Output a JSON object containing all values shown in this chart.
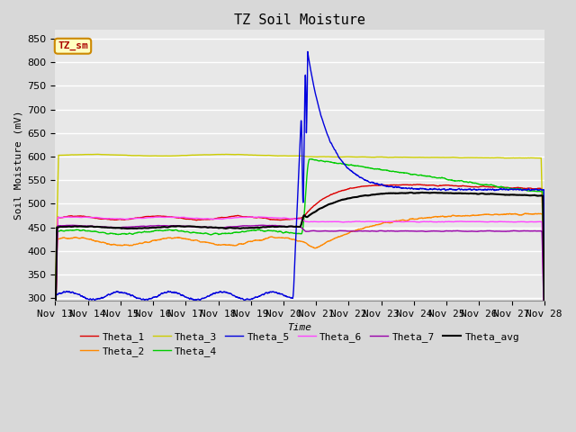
{
  "title": "TZ Soil Moisture",
  "ylabel": "Soil Moisture (mV)",
  "xlabel": "Time",
  "legend_label": "TZ_sm",
  "ylim": [
    295,
    870
  ],
  "yticks": [
    300,
    350,
    400,
    450,
    500,
    550,
    600,
    650,
    700,
    750,
    800,
    850
  ],
  "x_tick_labels": [
    "Nov 13",
    "Nov 14",
    "Nov 15",
    "Nov 16",
    "Nov 17",
    "Nov 18",
    "Nov 19",
    "Nov 20",
    "Nov 21",
    "Nov 22",
    "Nov 23",
    "Nov 24",
    "Nov 25",
    "Nov 26",
    "Nov 27",
    "Nov 28"
  ],
  "series_colors": {
    "Theta_1": "#dd0000",
    "Theta_2": "#ff8800",
    "Theta_3": "#cccc00",
    "Theta_4": "#00cc00",
    "Theta_5": "#0000dd",
    "Theta_6": "#ff44ff",
    "Theta_7": "#9900aa",
    "Theta_avg": "#000000"
  },
  "event_day": 7.6,
  "plot_bg_color": "#e8e8e8",
  "grid_color": "#ffffff",
  "title_fontsize": 11,
  "axis_fontsize": 8,
  "tick_fontsize": 8
}
